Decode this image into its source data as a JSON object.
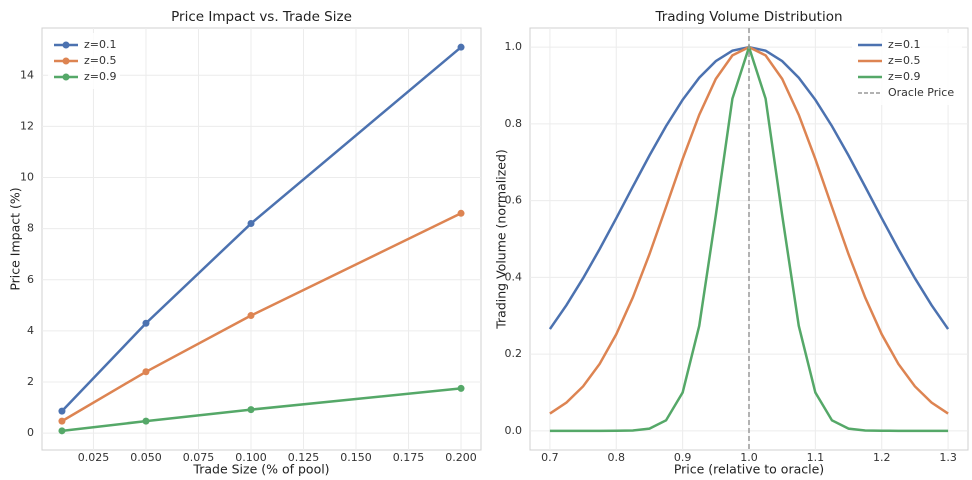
{
  "chart_data": [
    {
      "type": "line",
      "title": "Price Impact vs. Trade Size",
      "xlabel": "Trade Size (% of pool)",
      "ylabel": "Price Impact (%)",
      "x": [
        0.01,
        0.05,
        0.1,
        0.2
      ],
      "markers": true,
      "legend": "upper left",
      "grid": true,
      "series": [
        {
          "name": "z=0.1",
          "color": "#4c72b0",
          "values": [
            0.86,
            4.3,
            8.2,
            15.1
          ]
        },
        {
          "name": "z=0.5",
          "color": "#dd8452",
          "values": [
            0.47,
            2.4,
            4.6,
            8.6
          ]
        },
        {
          "name": "z=0.9",
          "color": "#55a868",
          "values": [
            0.09,
            0.47,
            0.92,
            1.75
          ]
        }
      ],
      "xlim": [
        0.0005,
        0.2095
      ],
      "ylim": [
        -0.66,
        15.85
      ],
      "xticks": [
        {
          "value": 0.025,
          "label": "0.025"
        },
        {
          "value": 0.05,
          "label": "0.050"
        },
        {
          "value": 0.075,
          "label": "0.075"
        },
        {
          "value": 0.1,
          "label": "0.100"
        },
        {
          "value": 0.125,
          "label": "0.125"
        },
        {
          "value": 0.15,
          "label": "0.150"
        },
        {
          "value": 0.175,
          "label": "0.175"
        },
        {
          "value": 0.2,
          "label": "0.200"
        }
      ],
      "yticks": [
        0,
        2,
        4,
        6,
        8,
        10,
        12,
        14
      ]
    },
    {
      "type": "line",
      "title": "Trading Volume Distribution",
      "xlabel": "Price (relative to oracle)",
      "ylabel": "Trading Volume (normalized)",
      "x": [
        0.7,
        0.725,
        0.75,
        0.775,
        0.8,
        0.825,
        0.85,
        0.875,
        0.9,
        0.925,
        0.95,
        0.975,
        1.0,
        1.025,
        1.05,
        1.075,
        1.1,
        1.125,
        1.15,
        1.175,
        1.2,
        1.225,
        1.25,
        1.275,
        1.3
      ],
      "markers": false,
      "legend": "upper right",
      "grid": true,
      "series": [
        {
          "name": "z=0.1",
          "color": "#4c72b0",
          "values": [
            0.2652,
            0.3278,
            0.3978,
            0.4739,
            0.5543,
            0.6366,
            0.7176,
            0.7942,
            0.8629,
            0.9204,
            0.9638,
            0.9908,
            1,
            0.9908,
            0.9638,
            0.9204,
            0.8629,
            0.7942,
            0.7176,
            0.6366,
            0.5543,
            0.4739,
            0.3978,
            0.3278,
            0.2652
          ]
        },
        {
          "name": "z=0.5",
          "color": "#dd8452",
          "values": [
            0.0449,
            0.0737,
            0.1159,
            0.1745,
            0.2517,
            0.3478,
            0.4603,
            0.5834,
            0.7083,
            0.8237,
            0.9174,
            0.9787,
            1,
            0.9787,
            0.9174,
            0.8237,
            0.7083,
            0.5834,
            0.4603,
            0.3478,
            0.2517,
            0.1745,
            0.1159,
            0.0737,
            0.0449
          ]
        },
        {
          "name": "z=0.9",
          "color": "#55a868",
          "values": [
            0,
            0,
            0,
            0,
            0.0001,
            0.0009,
            0.0056,
            0.0273,
            0.0999,
            0.2736,
            0.5621,
            0.8659,
            1,
            0.8659,
            0.5621,
            0.2736,
            0.0999,
            0.0273,
            0.0056,
            0.0009,
            0.0001,
            0,
            0,
            0,
            0
          ]
        }
      ],
      "vline": {
        "x": 1,
        "name": "Oracle Price",
        "color": "#999999"
      },
      "xlim": [
        0.67,
        1.33
      ],
      "ylim": [
        -0.05,
        1.05
      ],
      "xticks": [
        0.7,
        0.8,
        0.9,
        {
          "value": 1,
          "label": "1.0"
        },
        1.1,
        1.2,
        1.3
      ],
      "yticks": [
        {
          "value": 0,
          "label": "0.0"
        },
        0.2,
        0.4,
        0.6,
        0.8,
        {
          "value": 1,
          "label": "1.0"
        }
      ]
    }
  ]
}
